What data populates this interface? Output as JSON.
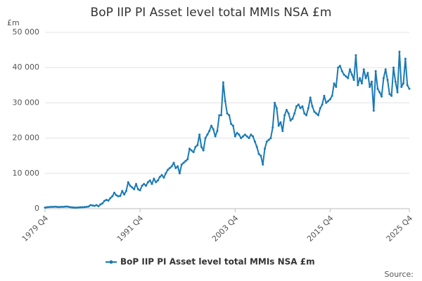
{
  "chart_data": {
    "type": "line",
    "title": "BoP IIP PI Asset level total MMIs NSA £m",
    "y_unit": "£m",
    "source": "Source:",
    "legend": "bottom",
    "grid": true,
    "ylim": [
      0,
      50000
    ],
    "yticks": [
      0,
      {
        "value": 10000,
        "label": "10 000"
      },
      {
        "value": 20000,
        "label": "20 000"
      },
      {
        "value": 30000,
        "label": "30 000"
      },
      {
        "value": 40000,
        "label": "40 000"
      },
      {
        "value": 50000,
        "label": "50 000"
      }
    ],
    "categories": [
      "1979 Q4",
      null,
      null,
      null,
      null,
      null,
      null,
      null,
      null,
      null,
      null,
      null,
      null,
      null,
      null,
      null,
      null,
      null,
      null,
      null,
      null,
      null,
      null,
      null,
      null,
      null,
      null,
      null,
      null,
      null,
      null,
      null,
      null,
      null,
      null,
      null,
      null,
      null,
      null,
      null,
      null,
      null,
      null,
      null,
      null,
      null,
      null,
      null,
      "1991 Q4",
      null,
      null,
      null,
      null,
      null,
      null,
      null,
      null,
      null,
      null,
      null,
      null,
      null,
      null,
      null,
      null,
      null,
      null,
      null,
      null,
      null,
      null,
      null,
      null,
      null,
      null,
      null,
      null,
      null,
      null,
      null,
      null,
      null,
      null,
      null,
      null,
      null,
      null,
      null,
      null,
      null,
      null,
      null,
      null,
      null,
      null,
      null,
      "2003 Q4",
      null,
      null,
      null,
      null,
      null,
      null,
      null,
      null,
      null,
      null,
      null,
      null,
      null,
      null,
      null,
      null,
      null,
      null,
      null,
      null,
      null,
      null,
      null,
      null,
      null,
      null,
      null,
      null,
      null,
      null,
      null,
      null,
      null,
      null,
      null,
      null,
      null,
      null,
      null,
      null,
      null,
      null,
      null,
      null,
      null,
      null,
      null,
      "2015 Q4",
      null,
      null,
      null,
      null,
      null,
      null,
      null,
      null,
      null,
      null,
      null,
      null,
      null,
      null,
      null,
      null,
      null,
      null,
      null,
      null,
      null,
      null,
      null,
      null,
      null,
      null,
      null,
      null,
      null,
      null,
      null,
      null,
      null,
      null,
      null,
      null,
      null,
      null,
      null,
      "2025 Q4"
    ],
    "series": [
      {
        "name": "BoP IIP PI Asset level total MMIs NSA £m",
        "color": "#1a7ab5",
        "values": [
          300,
          400,
          450,
          500,
          500,
          550,
          500,
          450,
          500,
          500,
          550,
          600,
          500,
          400,
          350,
          300,
          300,
          350,
          400,
          400,
          450,
          500,
          600,
          1000,
          900,
          800,
          1000,
          700,
          1200,
          1500,
          2200,
          2500,
          2300,
          3000,
          3500,
          4500,
          3800,
          3500,
          3600,
          5000,
          4000,
          5000,
          7500,
          6500,
          6000,
          5500,
          7000,
          5500,
          5200,
          6500,
          7000,
          6500,
          7500,
          8000,
          7000,
          8500,
          7500,
          8000,
          9000,
          9500,
          8800,
          10000,
          11000,
          11500,
          12000,
          13000,
          11500,
          12000,
          10000,
          12500,
          13000,
          13500,
          14000,
          17000,
          16500,
          16000,
          17500,
          18000,
          21000,
          17500,
          16500,
          20000,
          21000,
          22000,
          23500,
          22500,
          20500,
          22000,
          26500,
          26500,
          35800,
          30500,
          27000,
          26500,
          24000,
          23500,
          20500,
          21500,
          21000,
          20000,
          20500,
          21000,
          20500,
          20000,
          21000,
          20500,
          19000,
          17500,
          15500,
          15000,
          12500,
          17000,
          19000,
          19500,
          20000,
          23000,
          30000,
          28500,
          23500,
          24500,
          22000,
          26500,
          28000,
          27000,
          25000,
          25500,
          27000,
          29000,
          29500,
          28500,
          29000,
          27000,
          26500,
          28500,
          31500,
          29000,
          27500,
          27000,
          26500,
          28500,
          29500,
          32000,
          30000,
          30500,
          31000,
          32000,
          35500,
          34500,
          40000,
          40500,
          39000,
          38000,
          37500,
          37000,
          39500,
          38000,
          36500,
          43500,
          35000,
          37000,
          35500,
          39500,
          37000,
          38500,
          34500,
          36000,
          27800,
          39000,
          34000,
          33000,
          31800,
          37000,
          39500,
          36500,
          32500,
          32000,
          40000,
          36000,
          33000,
          44500,
          34500,
          35500,
          42500,
          35000,
          34000
        ]
      }
    ]
  }
}
